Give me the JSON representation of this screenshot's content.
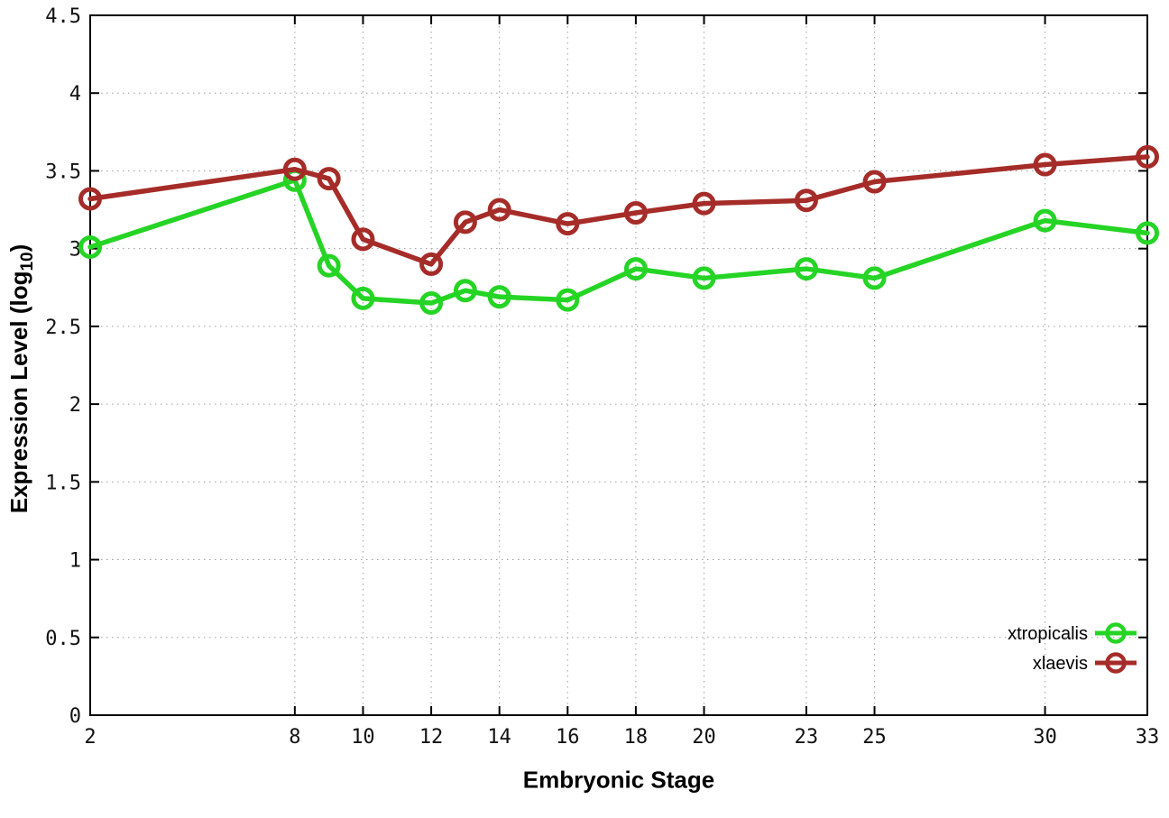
{
  "chart_data": {
    "type": "line",
    "title": "",
    "xlabel": "Embryonic Stage",
    "ylabel": "Expression Level (log10)",
    "ylabel_prefix": "Expression Level (log",
    "ylabel_sub": "10",
    "ylabel_suffix": ")",
    "x": [
      2,
      8,
      9,
      10,
      12,
      13,
      14,
      16,
      18,
      20,
      23,
      25,
      30,
      33
    ],
    "series": [
      {
        "name": "xtropicalis",
        "color": "#25d425",
        "values": [
          3.01,
          3.44,
          2.89,
          2.68,
          2.65,
          2.73,
          2.69,
          2.67,
          2.87,
          2.81,
          2.87,
          2.81,
          3.18,
          3.1
        ]
      },
      {
        "name": "xlaevis",
        "color": "#a52c28",
        "values": [
          3.32,
          3.51,
          3.45,
          3.06,
          2.9,
          3.17,
          3.25,
          3.16,
          3.23,
          3.29,
          3.31,
          3.43,
          3.54,
          3.59
        ]
      }
    ],
    "xticks": [
      2,
      8,
      10,
      12,
      14,
      16,
      18,
      20,
      23,
      25,
      30,
      33
    ],
    "yticks": [
      0,
      0.5,
      1,
      1.5,
      2,
      2.5,
      3,
      3.5,
      4,
      4.5
    ],
    "xlim": [
      2,
      33
    ],
    "ylim": [
      0,
      4.5
    ],
    "grid": true,
    "legend_position": "bottom-right",
    "colors": {
      "axis": "#000000",
      "grid": "#9e9e9e",
      "tick_text": "#111111",
      "background": "#ffffff"
    }
  }
}
